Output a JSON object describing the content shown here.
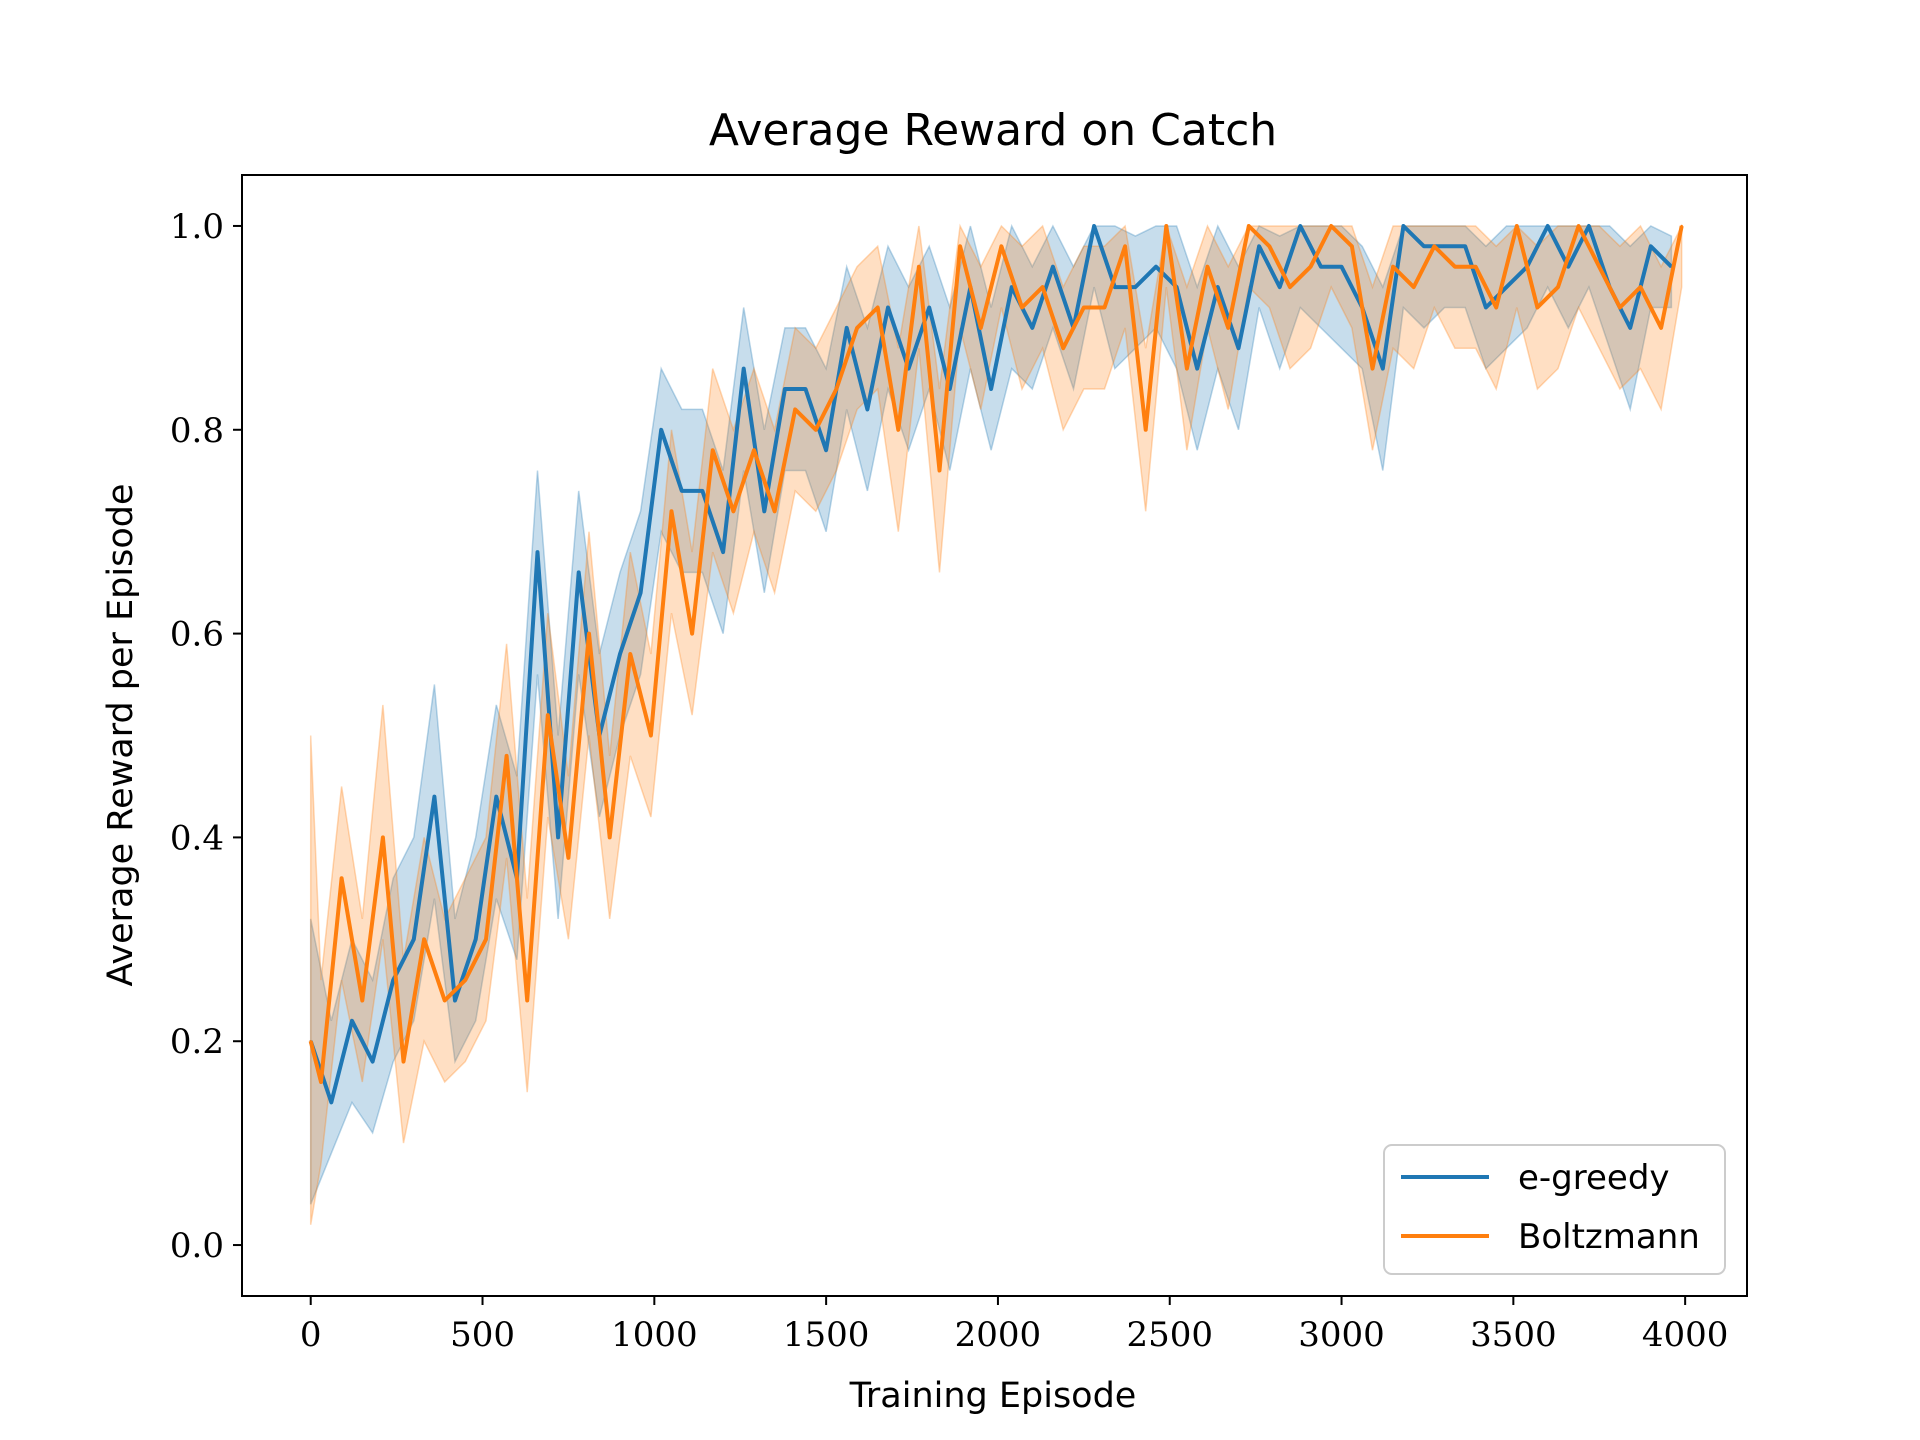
{
  "chart_data": {
    "type": "line",
    "title": "Average Reward on Catch",
    "xlabel": "Training Episode",
    "ylabel": "Average Reward per Episode",
    "xlim": [
      -200,
      4180
    ],
    "ylim": [
      -0.05,
      1.05
    ],
    "xticks": [
      0,
      500,
      1000,
      1500,
      2000,
      2500,
      3000,
      3500,
      4000
    ],
    "xtick_labels": [
      "0",
      "500",
      "1000",
      "1500",
      "2000",
      "2500",
      "3000",
      "3500",
      "4000"
    ],
    "yticks": [
      0.0,
      0.2,
      0.4,
      0.6,
      0.8,
      1.0
    ],
    "ytick_labels": [
      "0.0",
      "0.2",
      "0.4",
      "0.6",
      "0.8",
      "1.0"
    ],
    "grid": false,
    "legend_position": "lower-right",
    "series": [
      {
        "name": "e-greedy",
        "color": "#1f77b4",
        "x": [
          0,
          60,
          120,
          180,
          240,
          300,
          360,
          420,
          480,
          540,
          600,
          660,
          720,
          780,
          840,
          900,
          960,
          1020,
          1080,
          1140,
          1200,
          1260,
          1320,
          1380,
          1440,
          1500,
          1560,
          1620,
          1680,
          1740,
          1800,
          1860,
          1920,
          1980,
          2040,
          2100,
          2160,
          2220,
          2280,
          2340,
          2400,
          2460,
          2520,
          2580,
          2640,
          2700,
          2760,
          2820,
          2880,
          2940,
          3000,
          3060,
          3120,
          3180,
          3240,
          3300,
          3360,
          3420,
          3480,
          3540,
          3600,
          3660,
          3720,
          3780,
          3840,
          3900,
          3960
        ],
        "y": [
          0.2,
          0.14,
          0.22,
          0.18,
          0.26,
          0.3,
          0.44,
          0.24,
          0.3,
          0.44,
          0.36,
          0.68,
          0.4,
          0.66,
          0.5,
          0.58,
          0.64,
          0.8,
          0.74,
          0.74,
          0.68,
          0.86,
          0.72,
          0.84,
          0.84,
          0.78,
          0.9,
          0.82,
          0.92,
          0.86,
          0.92,
          0.84,
          0.94,
          0.84,
          0.94,
          0.9,
          0.96,
          0.9,
          1.0,
          0.94,
          0.94,
          0.96,
          0.94,
          0.86,
          0.94,
          0.88,
          0.98,
          0.94,
          1.0,
          0.96,
          0.96,
          0.92,
          0.86,
          1.0,
          0.98,
          0.98,
          0.98,
          0.92,
          0.94,
          0.96,
          1.0,
          0.96,
          1.0,
          0.94,
          0.9,
          0.98,
          0.96
        ],
        "lower": [
          0.04,
          0.09,
          0.14,
          0.11,
          0.18,
          0.22,
          0.34,
          0.18,
          0.22,
          0.34,
          0.28,
          0.56,
          0.32,
          0.56,
          0.42,
          0.5,
          0.56,
          0.7,
          0.66,
          0.66,
          0.6,
          0.76,
          0.64,
          0.76,
          0.76,
          0.7,
          0.82,
          0.74,
          0.84,
          0.78,
          0.84,
          0.76,
          0.86,
          0.78,
          0.86,
          0.84,
          0.9,
          0.84,
          0.94,
          0.86,
          0.88,
          0.9,
          0.86,
          0.78,
          0.86,
          0.8,
          0.92,
          0.86,
          0.92,
          0.9,
          0.88,
          0.86,
          0.76,
          0.92,
          0.9,
          0.92,
          0.92,
          0.86,
          0.88,
          0.9,
          0.94,
          0.9,
          0.94,
          0.88,
          0.82,
          0.92,
          0.92
        ],
        "upper": [
          0.32,
          0.22,
          0.3,
          0.26,
          0.36,
          0.4,
          0.55,
          0.32,
          0.4,
          0.53,
          0.46,
          0.76,
          0.5,
          0.74,
          0.58,
          0.66,
          0.72,
          0.86,
          0.82,
          0.82,
          0.76,
          0.92,
          0.8,
          0.9,
          0.9,
          0.86,
          0.96,
          0.9,
          0.98,
          0.94,
          0.98,
          0.92,
          1.0,
          0.92,
          1.0,
          0.96,
          1.0,
          0.96,
          1.0,
          1.0,
          0.99,
          1.0,
          1.0,
          0.94,
          1.0,
          0.96,
          1.0,
          0.99,
          1.0,
          1.0,
          1.0,
          0.98,
          0.94,
          1.0,
          1.0,
          1.0,
          1.0,
          0.98,
          1.0,
          1.0,
          1.0,
          1.0,
          1.0,
          1.0,
          0.98,
          1.0,
          0.99
        ]
      },
      {
        "name": "Boltzmann",
        "color": "#ff7f0e",
        "x": [
          0,
          30,
          90,
          150,
          210,
          270,
          330,
          390,
          450,
          510,
          570,
          630,
          690,
          750,
          810,
          870,
          930,
          990,
          1050,
          1110,
          1170,
          1230,
          1290,
          1350,
          1410,
          1470,
          1530,
          1590,
          1650,
          1710,
          1770,
          1830,
          1890,
          1950,
          2010,
          2070,
          2130,
          2190,
          2250,
          2310,
          2370,
          2430,
          2490,
          2550,
          2610,
          2670,
          2730,
          2790,
          2850,
          2910,
          2970,
          3030,
          3090,
          3150,
          3210,
          3270,
          3330,
          3390,
          3450,
          3510,
          3570,
          3630,
          3690,
          3750,
          3810,
          3870,
          3930,
          3990
        ],
        "y": [
          0.2,
          0.16,
          0.36,
          0.24,
          0.4,
          0.18,
          0.3,
          0.24,
          0.26,
          0.3,
          0.48,
          0.24,
          0.52,
          0.38,
          0.6,
          0.4,
          0.58,
          0.5,
          0.72,
          0.6,
          0.78,
          0.72,
          0.78,
          0.72,
          0.82,
          0.8,
          0.84,
          0.9,
          0.92,
          0.8,
          0.96,
          0.76,
          0.98,
          0.9,
          0.98,
          0.92,
          0.94,
          0.88,
          0.92,
          0.92,
          0.98,
          0.8,
          1.0,
          0.86,
          0.96,
          0.9,
          1.0,
          0.98,
          0.94,
          0.96,
          1.0,
          0.98,
          0.86,
          0.96,
          0.94,
          0.98,
          0.96,
          0.96,
          0.92,
          1.0,
          0.92,
          0.94,
          1.0,
          0.96,
          0.92,
          0.94,
          0.9,
          1.0
        ],
        "lower": [
          0.02,
          0.08,
          0.26,
          0.16,
          0.3,
          0.1,
          0.2,
          0.16,
          0.18,
          0.22,
          0.38,
          0.15,
          0.42,
          0.3,
          0.5,
          0.32,
          0.48,
          0.42,
          0.62,
          0.52,
          0.68,
          0.62,
          0.7,
          0.64,
          0.74,
          0.72,
          0.76,
          0.82,
          0.84,
          0.7,
          0.88,
          0.66,
          0.9,
          0.82,
          0.92,
          0.84,
          0.88,
          0.8,
          0.84,
          0.84,
          0.9,
          0.72,
          0.94,
          0.78,
          0.9,
          0.82,
          0.94,
          0.92,
          0.86,
          0.88,
          0.94,
          0.9,
          0.78,
          0.88,
          0.86,
          0.92,
          0.88,
          0.88,
          0.84,
          0.92,
          0.84,
          0.86,
          0.92,
          0.88,
          0.84,
          0.86,
          0.82,
          0.94
        ],
        "upper": [
          0.5,
          0.26,
          0.45,
          0.32,
          0.53,
          0.28,
          0.4,
          0.32,
          0.36,
          0.4,
          0.59,
          0.34,
          0.62,
          0.46,
          0.7,
          0.48,
          0.68,
          0.58,
          0.8,
          0.68,
          0.86,
          0.8,
          0.86,
          0.8,
          0.9,
          0.88,
          0.92,
          0.96,
          0.98,
          0.88,
          1.0,
          0.84,
          1.0,
          0.96,
          1.0,
          0.98,
          1.0,
          0.94,
          0.98,
          0.98,
          1.0,
          0.88,
          1.0,
          0.94,
          1.0,
          0.96,
          1.0,
          1.0,
          1.0,
          1.0,
          1.0,
          1.0,
          0.94,
          1.0,
          1.0,
          1.0,
          1.0,
          1.0,
          0.98,
          1.0,
          0.98,
          1.0,
          1.0,
          1.0,
          0.98,
          1.0,
          0.96,
          1.0
        ]
      }
    ]
  }
}
